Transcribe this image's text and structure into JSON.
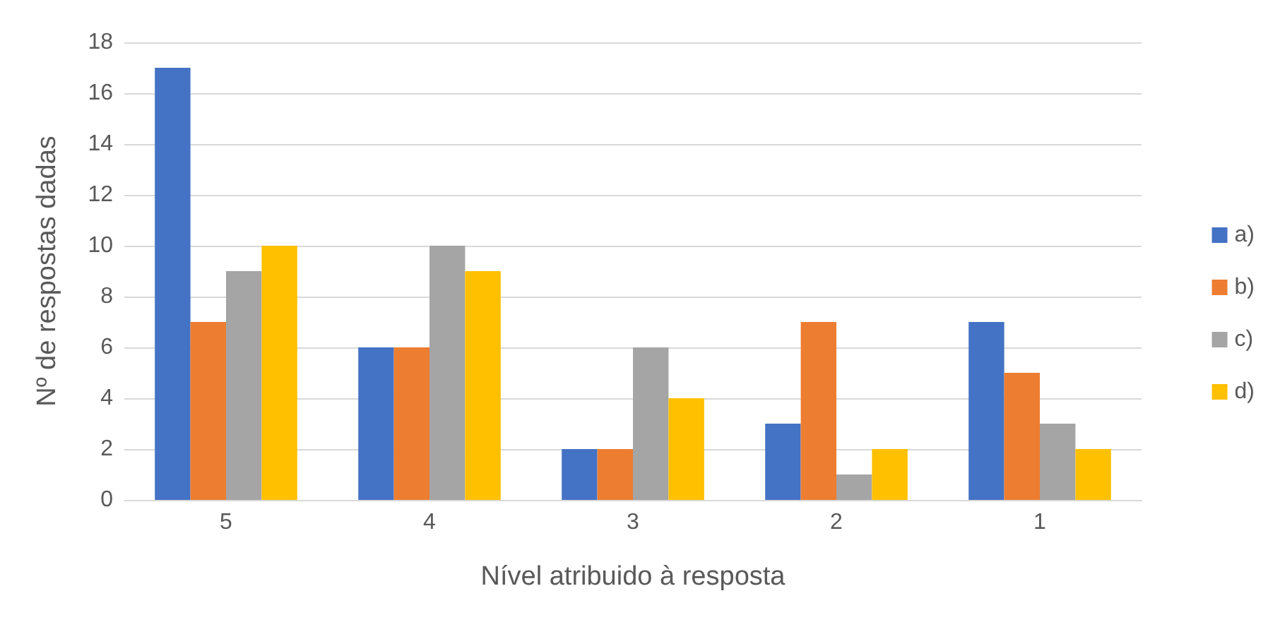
{
  "chart_data": {
    "type": "bar",
    "xlabel": "Nível atribuido à resposta",
    "ylabel": "Nº de respostas dadas",
    "categories": [
      "5",
      "4",
      "3",
      "2",
      "1"
    ],
    "series": [
      {
        "name": "a)",
        "color": "#4472c4",
        "values": [
          17,
          6,
          2,
          3,
          7
        ]
      },
      {
        "name": "b)",
        "color": "#ed7d31",
        "values": [
          7,
          6,
          2,
          7,
          5
        ]
      },
      {
        "name": "c)",
        "color": "#a5a5a5",
        "values": [
          9,
          10,
          6,
          1,
          3
        ]
      },
      {
        "name": "d)",
        "color": "#ffc000",
        "values": [
          10,
          9,
          4,
          2,
          2
        ]
      }
    ],
    "ylim": [
      0,
      18
    ],
    "yticks": [
      0,
      2,
      4,
      6,
      8,
      10,
      12,
      14,
      16,
      18
    ],
    "grid": "y",
    "legend": "right"
  }
}
